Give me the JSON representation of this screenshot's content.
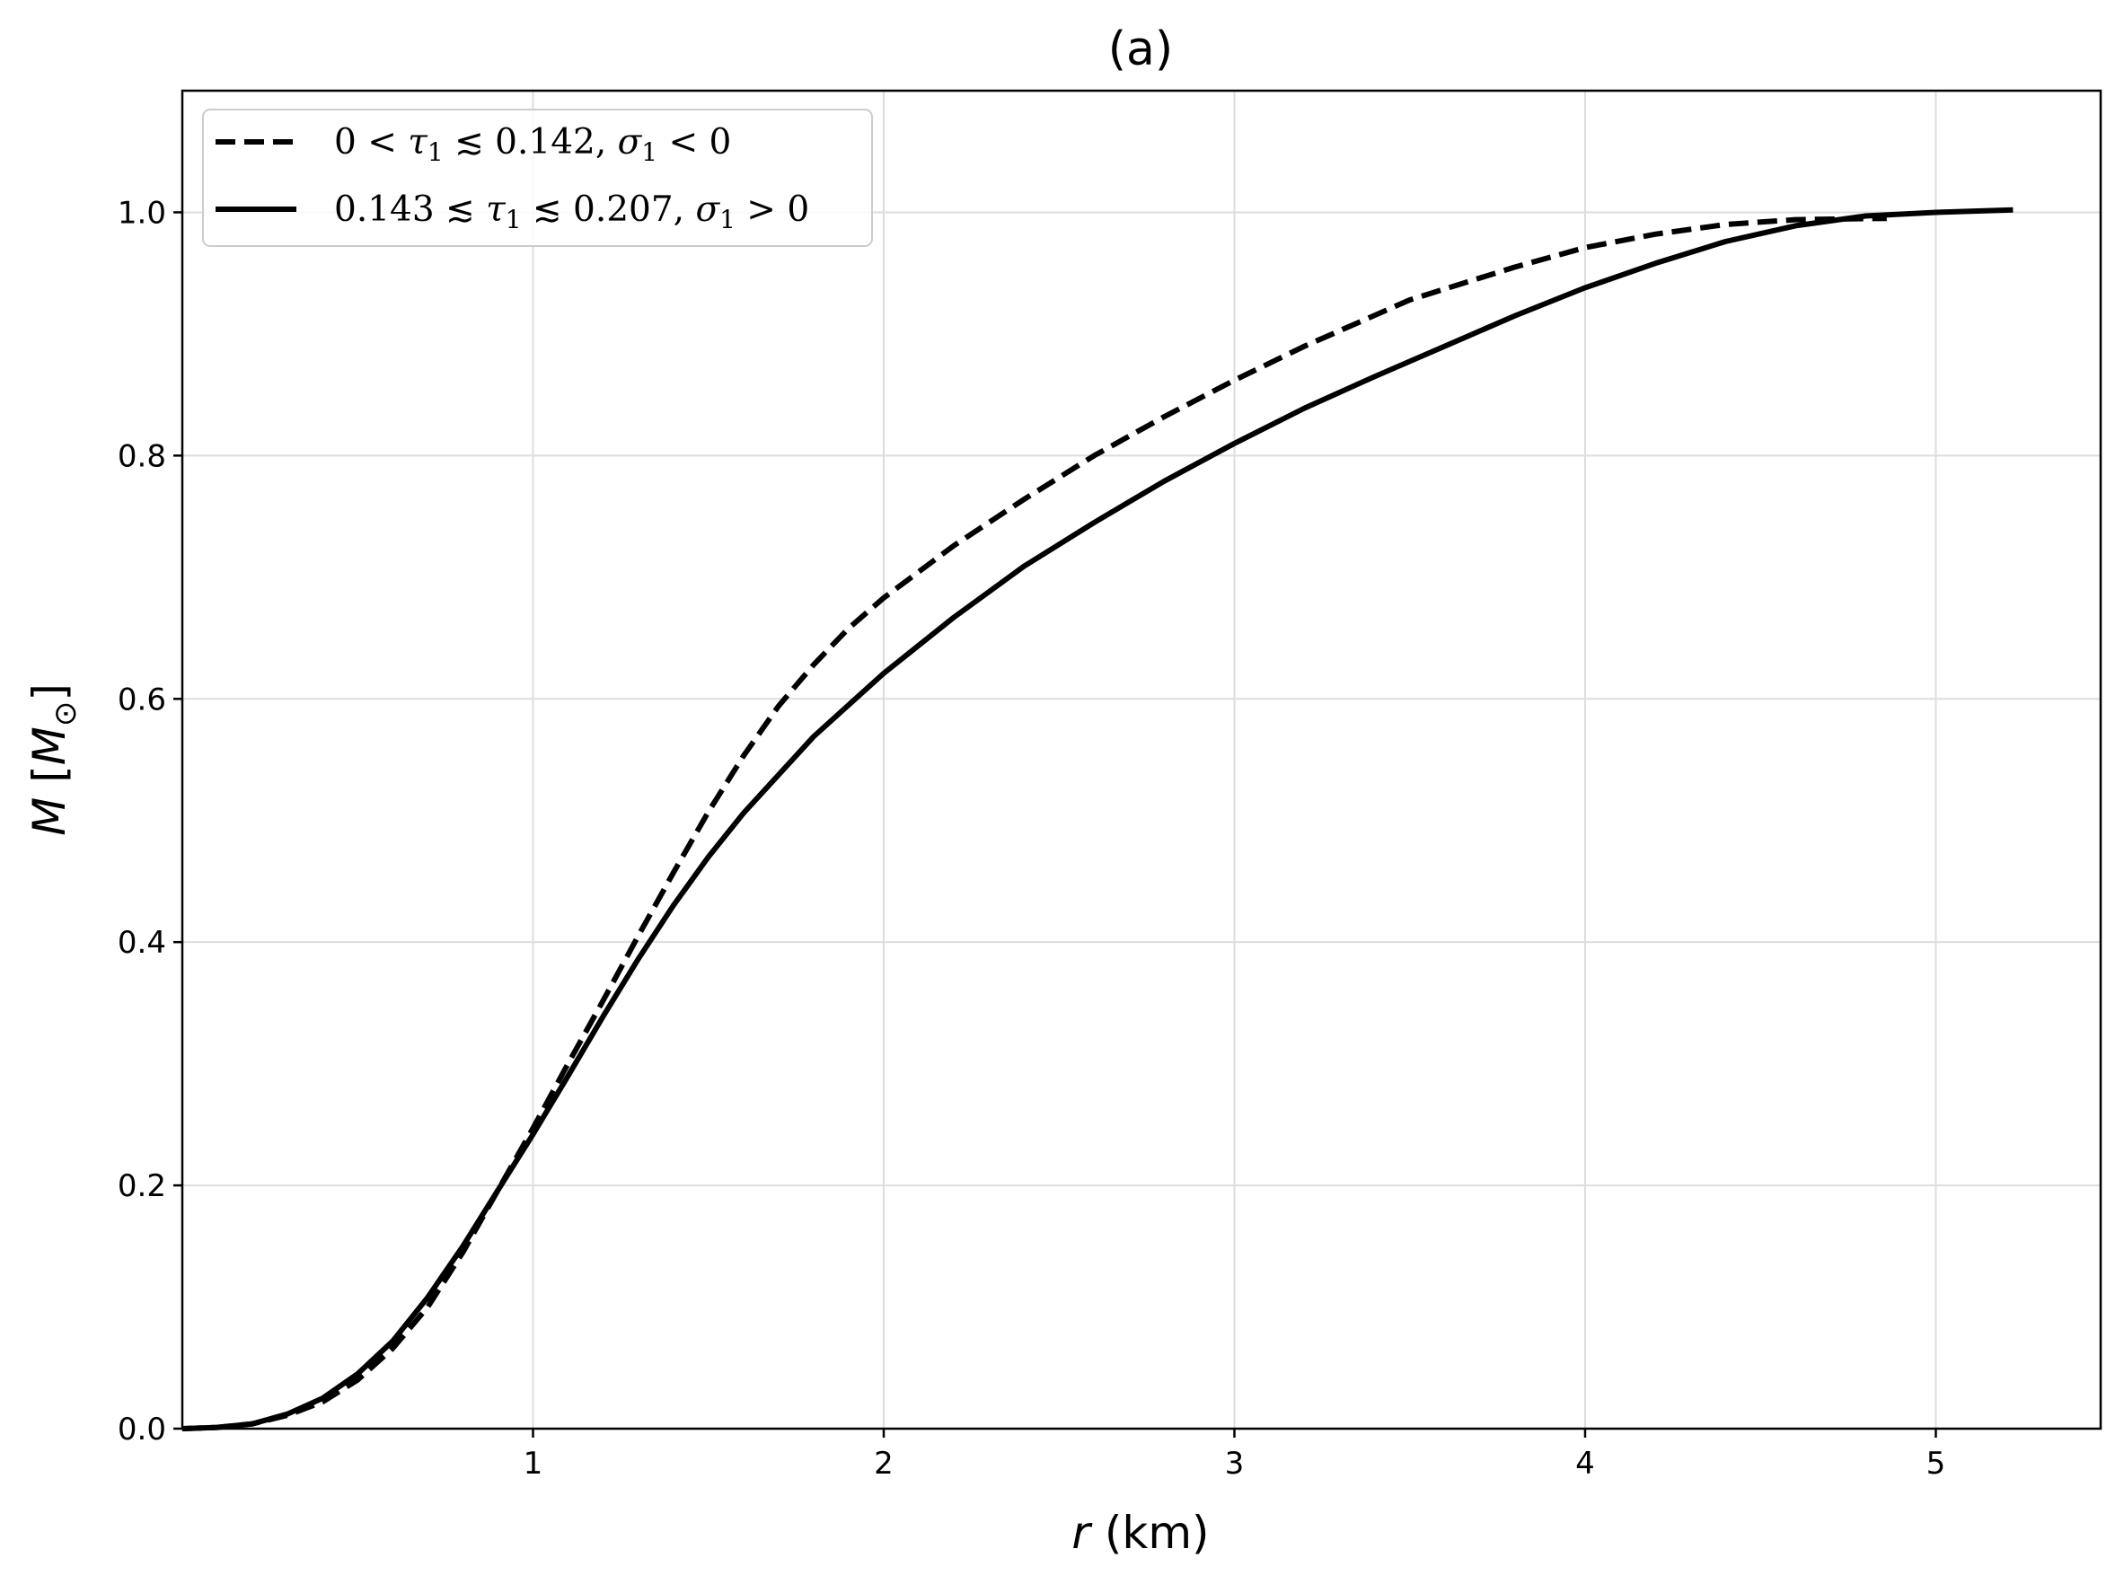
{
  "chart_data": {
    "type": "line",
    "title": "(a)",
    "xlabel_var": "r",
    "xlabel_unit": " (km)",
    "ylabel_var": "M",
    "ylabel_unit": "M",
    "ylabel_sub": "⊙",
    "xlim": [
      0.0,
      5.47
    ],
    "ylim": [
      0.0,
      1.1
    ],
    "xticks": [
      1,
      2,
      3,
      4,
      5
    ],
    "xtick_labels": [
      "1",
      "2",
      "3",
      "4",
      "5"
    ],
    "yticks": [
      0.0,
      0.2,
      0.4,
      0.6,
      0.8,
      1.0
    ],
    "ytick_labels": [
      "0.0",
      "0.2",
      "0.4",
      "0.6",
      "0.8",
      "1.0"
    ],
    "grid": true,
    "legend_position": "top-left",
    "line_color": "#000000",
    "series": [
      {
        "name": "0 < τ₁ ≲ 0.142, σ₁ < 0",
        "legend": {
          "lead": "0 < ",
          "var1": "τ",
          "sub1": "1",
          "mid": " ≲ 0.142, ",
          "var2": "σ",
          "sub2": "1",
          "tail": " < 0"
        },
        "style": "dashed",
        "x": [
          0.0,
          0.1,
          0.2,
          0.3,
          0.4,
          0.5,
          0.6,
          0.7,
          0.8,
          0.9,
          1.0,
          1.1,
          1.2,
          1.3,
          1.4,
          1.5,
          1.6,
          1.7,
          1.8,
          1.9,
          2.0,
          2.2,
          2.4,
          2.6,
          2.8,
          3.0,
          3.2,
          3.5,
          3.8,
          4.0,
          4.2,
          4.4,
          4.6,
          4.86
        ],
        "y": [
          0.0,
          0.001,
          0.004,
          0.011,
          0.022,
          0.04,
          0.066,
          0.1,
          0.145,
          0.196,
          0.247,
          0.3,
          0.352,
          0.405,
          0.457,
          0.507,
          0.553,
          0.594,
          0.628,
          0.658,
          0.683,
          0.726,
          0.764,
          0.8,
          0.832,
          0.862,
          0.89,
          0.928,
          0.955,
          0.971,
          0.982,
          0.99,
          0.994,
          0.995
        ]
      },
      {
        "name": "0.143 ≲ τ₁ ≲ 0.207, σ₁ > 0",
        "legend": {
          "lead": "0.143 ≲ ",
          "var1": "τ",
          "sub1": "1",
          "mid": " ≲ 0.207, ",
          "var2": "σ",
          "sub2": "1",
          "tail": " > 0"
        },
        "style": "solid",
        "x": [
          0.0,
          0.1,
          0.2,
          0.3,
          0.4,
          0.5,
          0.6,
          0.7,
          0.8,
          0.9,
          1.0,
          1.1,
          1.2,
          1.3,
          1.4,
          1.5,
          1.6,
          1.8,
          2.0,
          2.2,
          2.4,
          2.6,
          2.8,
          3.0,
          3.2,
          3.4,
          3.6,
          3.8,
          4.0,
          4.2,
          4.4,
          4.6,
          4.8,
          5.0,
          5.22
        ],
        "y": [
          0.0,
          0.001,
          0.004,
          0.012,
          0.025,
          0.045,
          0.072,
          0.108,
          0.15,
          0.196,
          0.242,
          0.29,
          0.339,
          0.386,
          0.43,
          0.47,
          0.506,
          0.569,
          0.621,
          0.667,
          0.709,
          0.745,
          0.779,
          0.81,
          0.839,
          0.865,
          0.89,
          0.915,
          0.938,
          0.958,
          0.976,
          0.989,
          0.997,
          1.0,
          1.002
        ]
      }
    ]
  }
}
